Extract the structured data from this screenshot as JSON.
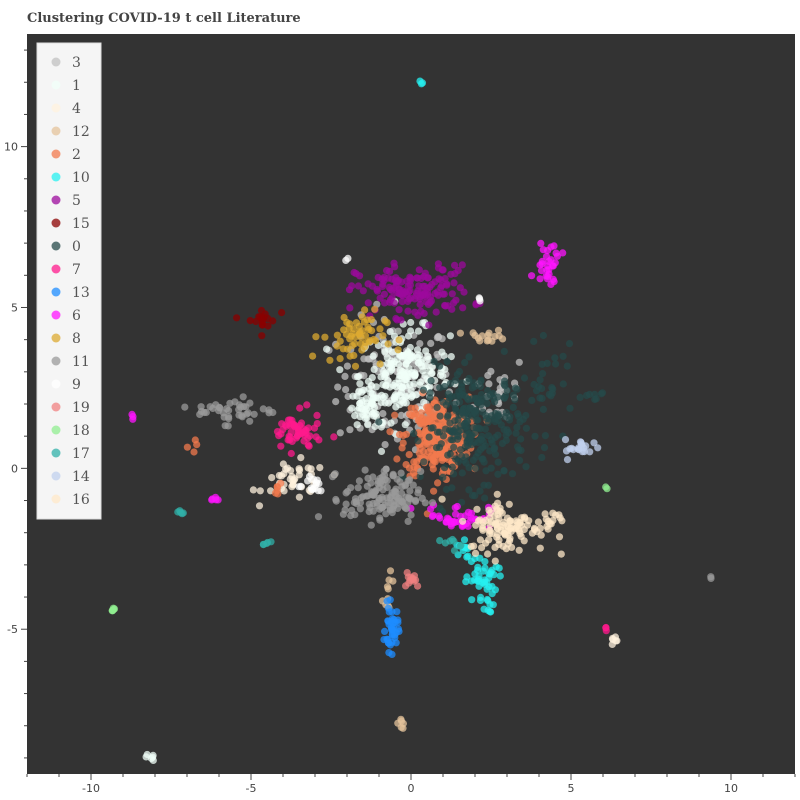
{
  "chart_data": {
    "type": "scatter",
    "title": "Clustering COVID-19 t cell Literature",
    "xlabel": "",
    "ylabel": "",
    "xlim": [
      -12.0,
      12.0
    ],
    "ylim": [
      -9.5,
      13.5
    ],
    "x_ticks": [
      -10,
      -5,
      0,
      5,
      10
    ],
    "y_ticks": [
      -5,
      0,
      5,
      10
    ],
    "x_tick_labels": [
      "-10",
      "-5",
      "0",
      "5",
      "10"
    ],
    "y_tick_labels": [
      "-5",
      "0",
      "5",
      "10"
    ],
    "grid": false,
    "legend_position": "top-left",
    "background_color": "#333333",
    "series": [
      {
        "name": "3",
        "color": "#c0c0c0",
        "clusters": [
          {
            "cx": -0.5,
            "cy": 2.6,
            "sx": 0.9,
            "sy": 1.0,
            "n": 140
          },
          {
            "cx": 2.8,
            "cy": 2.4,
            "sx": 0.4,
            "sy": 0.6,
            "n": 30
          }
        ]
      },
      {
        "name": "1",
        "color": "#f0fff8",
        "clusters": [
          {
            "cx": -0.2,
            "cy": 2.9,
            "sx": 0.7,
            "sy": 0.7,
            "n": 200
          },
          {
            "cx": -1.4,
            "cy": 1.8,
            "sx": 0.3,
            "sy": 0.3,
            "n": 40
          },
          {
            "cx": -8.2,
            "cy": -9.0,
            "sx": 0.1,
            "sy": 0.05,
            "n": 6
          }
        ]
      },
      {
        "name": "4",
        "color": "#fff2dd",
        "clusters": [
          {
            "cx": -3.6,
            "cy": -0.4,
            "sx": 0.5,
            "sy": 0.3,
            "n": 40
          },
          {
            "cx": 6.4,
            "cy": -5.3,
            "sx": 0.1,
            "sy": 0.1,
            "n": 6
          }
        ]
      },
      {
        "name": "12",
        "color": "#e4c39b",
        "clusters": [
          {
            "cx": 2.4,
            "cy": 4.1,
            "sx": 0.3,
            "sy": 0.1,
            "n": 15
          },
          {
            "cx": -0.3,
            "cy": -7.9,
            "sx": 0.05,
            "sy": 0.1,
            "n": 6
          },
          {
            "cx": -0.7,
            "cy": -3.9,
            "sx": 0.1,
            "sy": 0.3,
            "n": 10
          }
        ]
      },
      {
        "name": "2",
        "color": "#f27a4d",
        "clusters": [
          {
            "cx": 0.8,
            "cy": 1.0,
            "sx": 0.5,
            "sy": 0.6,
            "n": 260
          },
          {
            "cx": -4.2,
            "cy": -0.7,
            "sx": 0.2,
            "sy": 0.1,
            "n": 6
          },
          {
            "cx": -6.9,
            "cy": 0.7,
            "sx": 0.1,
            "sy": 0.1,
            "n": 4
          }
        ]
      },
      {
        "name": "10",
        "color": "#26f0f0",
        "clusters": [
          {
            "cx": 2.2,
            "cy": -3.5,
            "sx": 0.25,
            "sy": 0.4,
            "n": 45
          },
          {
            "cx": 1.6,
            "cy": -2.5,
            "sx": 0.1,
            "sy": 0.2,
            "n": 10
          },
          {
            "cx": 0.3,
            "cy": 12.0,
            "sx": 0.03,
            "sy": 0.03,
            "n": 3
          },
          {
            "cx": 2.4,
            "cy": -4.4,
            "sx": 0.06,
            "sy": 0.06,
            "n": 4
          }
        ]
      },
      {
        "name": "5",
        "color": "#9c0a9c",
        "clusters": [
          {
            "cx": 0.1,
            "cy": 5.5,
            "sx": 0.9,
            "sy": 0.4,
            "n": 150
          }
        ]
      },
      {
        "name": "15",
        "color": "#8b0000",
        "clusters": [
          {
            "cx": -4.7,
            "cy": 4.6,
            "sx": 0.25,
            "sy": 0.2,
            "n": 18
          }
        ]
      },
      {
        "name": "0",
        "color": "#264a4a",
        "clusters": [
          {
            "cx": 2.0,
            "cy": 1.3,
            "sx": 0.8,
            "sy": 0.9,
            "n": 260
          },
          {
            "cx": 4.3,
            "cy": 2.5,
            "sx": 0.4,
            "sy": 0.6,
            "n": 30
          },
          {
            "cx": 5.8,
            "cy": 2.2,
            "sx": 0.2,
            "sy": 0.15,
            "n": 8
          }
        ]
      },
      {
        "name": "7",
        "color": "#ff1a8c",
        "clusters": [
          {
            "cx": -3.6,
            "cy": 1.1,
            "sx": 0.4,
            "sy": 0.3,
            "n": 55
          },
          {
            "cx": 6.1,
            "cy": -5.0,
            "sx": 0.05,
            "sy": 0.05,
            "n": 3
          }
        ]
      },
      {
        "name": "13",
        "color": "#1e8cff",
        "clusters": [
          {
            "cx": -0.6,
            "cy": -5.0,
            "sx": 0.1,
            "sy": 0.35,
            "n": 40
          }
        ]
      },
      {
        "name": "6",
        "color": "#ff14ff",
        "clusters": [
          {
            "cx": 4.3,
            "cy": 6.4,
            "sx": 0.2,
            "sy": 0.35,
            "n": 30
          },
          {
            "cx": 1.5,
            "cy": -1.5,
            "sx": 0.5,
            "sy": 0.2,
            "n": 40
          },
          {
            "cx": -8.7,
            "cy": 1.6,
            "sx": 0.05,
            "sy": 0.05,
            "n": 3
          },
          {
            "cx": -6.1,
            "cy": -1.0,
            "sx": 0.15,
            "sy": 0.1,
            "n": 5
          }
        ]
      },
      {
        "name": "8",
        "color": "#dcaa30",
        "clusters": [
          {
            "cx": -1.8,
            "cy": 4.1,
            "sx": 0.5,
            "sy": 0.4,
            "n": 60
          }
        ]
      },
      {
        "name": "11",
        "color": "#999999",
        "clusters": [
          {
            "cx": -0.9,
            "cy": -0.9,
            "sx": 0.6,
            "sy": 0.4,
            "n": 130
          },
          {
            "cx": -5.5,
            "cy": 1.8,
            "sx": 0.6,
            "sy": 0.2,
            "n": 40
          },
          {
            "cx": 9.4,
            "cy": -3.4,
            "sx": 0.03,
            "sy": 0.03,
            "n": 2
          }
        ]
      },
      {
        "name": "9",
        "color": "#ffffff",
        "clusters": [
          {
            "cx": -3.2,
            "cy": -0.5,
            "sx": 0.3,
            "sy": 0.2,
            "n": 15
          },
          {
            "cx": 2.1,
            "cy": 5.3,
            "sx": 0.05,
            "sy": 0.05,
            "n": 3
          },
          {
            "cx": -2.0,
            "cy": 6.5,
            "sx": 0.05,
            "sy": 0.05,
            "n": 2
          }
        ]
      },
      {
        "name": "19",
        "color": "#f08080",
        "clusters": [
          {
            "cx": 0.0,
            "cy": -3.4,
            "sx": 0.15,
            "sy": 0.15,
            "n": 12
          }
        ]
      },
      {
        "name": "18",
        "color": "#90ee90",
        "clusters": [
          {
            "cx": -9.3,
            "cy": -4.4,
            "sx": 0.05,
            "sy": 0.05,
            "n": 6
          },
          {
            "cx": 6.1,
            "cy": -0.6,
            "sx": 0.03,
            "sy": 0.03,
            "n": 2
          }
        ]
      },
      {
        "name": "17",
        "color": "#30b0a8",
        "clusters": [
          {
            "cx": -7.2,
            "cy": -1.4,
            "sx": 0.05,
            "sy": 0.05,
            "n": 5
          },
          {
            "cx": -4.5,
            "cy": -2.3,
            "sx": 0.1,
            "sy": 0.05,
            "n": 5
          },
          {
            "cx": 1.3,
            "cy": -2.3,
            "sx": 0.2,
            "sy": 0.1,
            "n": 8
          }
        ]
      },
      {
        "name": "14",
        "color": "#c0d0ee",
        "clusters": [
          {
            "cx": 5.4,
            "cy": 0.6,
            "sx": 0.3,
            "sy": 0.15,
            "n": 20
          }
        ]
      },
      {
        "name": "16",
        "color": "#ffe8c8",
        "clusters": [
          {
            "cx": 3.0,
            "cy": -1.8,
            "sx": 0.6,
            "sy": 0.4,
            "n": 110
          },
          {
            "cx": 4.4,
            "cy": -1.6,
            "sx": 0.2,
            "sy": 0.1,
            "n": 10
          }
        ]
      }
    ]
  }
}
